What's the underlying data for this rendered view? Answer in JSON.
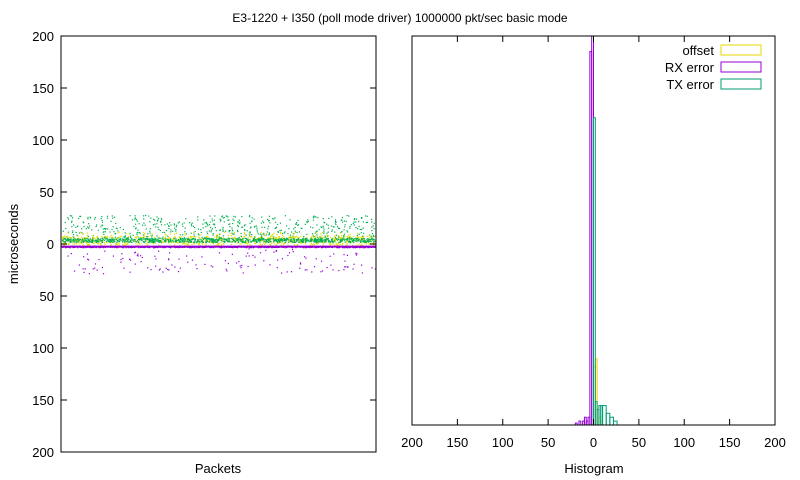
{
  "chart_data": {
    "title": "E3-1220 + I350 (poll mode driver) 1000000 pkt/sec basic mode",
    "colors": {
      "offset": "#e6d800",
      "rx_error": "#9400d3",
      "tx_error": "#009e73",
      "scatter_tx": "#00b050"
    },
    "panels": [
      {
        "type": "scatter",
        "xlabel": "Packets",
        "ylabel": "microseconds",
        "ylim": [
          -200,
          200
        ],
        "y_tick_labels": [
          "200",
          "150",
          "100",
          "50",
          "0",
          "50",
          "100",
          "150",
          "200"
        ],
        "y_tick_values": [
          200,
          150,
          100,
          50,
          0,
          -50,
          -100,
          -150,
          -200
        ],
        "series": [
          {
            "name": "offset",
            "band": [
              -1,
              8
            ],
            "spread_max": 12
          },
          {
            "name": "RX error",
            "band": [
              -3,
              -2
            ],
            "spread_min": -28
          },
          {
            "name": "TX error",
            "band": [
              2,
              6
            ],
            "spread_max": 28
          }
        ]
      },
      {
        "type": "histogram",
        "xlabel": "Histogram",
        "xlim": [
          200,
          -200
        ],
        "x_tick_labels": [
          "200",
          "150",
          "100",
          "50",
          "0",
          "50",
          "100",
          "150",
          "200"
        ],
        "x_tick_values": [
          200,
          150,
          100,
          50,
          0,
          -50,
          -100,
          -150,
          -200
        ],
        "legend_position": "top-right",
        "series": [
          {
            "name": "offset",
            "bins": [
              [
                -2,
                0,
                0.15
              ],
              [
                -4,
                -2,
                0.17
              ],
              [
                -6,
                -4,
                0.04
              ],
              [
                -8,
                -6,
                0.02
              ],
              [
                -10,
                -8,
                0.01
              ]
            ]
          },
          {
            "name": "RX error",
            "bins": [
              [
                0,
                2,
                1.0
              ],
              [
                2,
                4,
                0.96
              ],
              [
                4,
                6,
                0.02
              ],
              [
                6,
                8,
                0.01
              ],
              [
                8,
                10,
                0.02
              ],
              [
                10,
                12,
                0.01
              ],
              [
                14,
                16,
                0.01
              ],
              [
                18,
                20,
                0.005
              ]
            ]
          },
          {
            "name": "TX error",
            "bins": [
              [
                -2,
                0,
                0.79
              ],
              [
                -4,
                -2,
                0.06
              ],
              [
                -6,
                -4,
                0.04
              ],
              [
                -8,
                -6,
                0.05
              ],
              [
                -10,
                -8,
                0.05
              ],
              [
                -14,
                -10,
                0.05
              ],
              [
                -18,
                -14,
                0.03
              ],
              [
                -22,
                -18,
                0.02
              ],
              [
                -26,
                -22,
                0.01
              ]
            ]
          }
        ]
      }
    ]
  }
}
